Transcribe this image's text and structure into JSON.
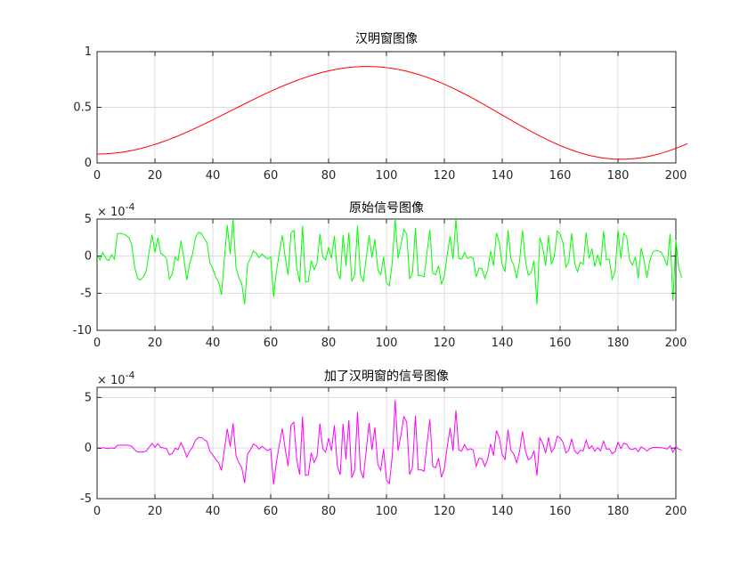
{
  "chart_data": [
    {
      "type": "line",
      "title": "汉明窗图像",
      "xlabel": "",
      "ylabel": "",
      "xlim": [
        0,
        200
      ],
      "ylim": [
        0,
        1
      ],
      "xticks": [
        "0",
        "20",
        "40",
        "60",
        "80",
        "100",
        "120",
        "140",
        "160",
        "180",
        "200"
      ],
      "yticks": [
        "0",
        "0.5",
        "1"
      ],
      "exponent": "",
      "grid": true,
      "color": "#ff0000",
      "series": [
        {
          "values": [
            0.08,
            0.0802,
            0.0809,
            0.082,
            0.0836,
            0.0856,
            0.0881,
            0.091,
            0.0943,
            0.0981,
            0.1023,
            0.1069,
            0.112,
            0.1174,
            0.1233,
            0.1296,
            0.1362,
            0.1433,
            0.1507,
            0.1585,
            0.1667,
            0.1752,
            0.184,
            0.1932,
            0.2027,
            0.2125,
            0.2226,
            0.233,
            0.2436,
            0.2545,
            0.2657,
            0.277,
            0.2886,
            0.3004,
            0.3124,
            0.3245,
            0.3368,
            0.3493,
            0.3619,
            0.3746,
            0.3874,
            0.4003,
            0.4133,
            0.4263,
            0.4394,
            0.4525,
            0.4656,
            0.4787,
            0.4919,
            0.505,
            0.518,
            0.531,
            0.544,
            0.5568,
            0.5696,
            0.5823,
            0.5948,
            0.6072,
            0.6195,
            0.6316,
            0.6435,
            0.6553,
            0.6668,
            0.6781,
            0.6893,
            0.7001,
            0.7108,
            0.7211,
            0.7312,
            0.741,
            0.7505,
            0.7597,
            0.7686,
            0.7772,
            0.7854,
            0.7933,
            0.8008,
            0.808,
            0.8148,
            0.8212,
            0.8272,
            0.8328,
            0.838,
            0.8428,
            0.8472,
            0.8511,
            0.8546,
            0.8577,
            0.8604,
            0.8626,
            0.8643,
            0.8656,
            0.8664,
            0.8668,
            0.8667,
            0.8662,
            0.8652,
            0.8637,
            0.8618,
            0.8594,
            0.8565,
            0.8532,
            0.8494,
            0.8452,
            0.8405,
            0.8353,
            0.8297,
            0.8237,
            0.8172,
            0.8103,
            0.8029,
            0.7952,
            0.787,
            0.7784,
            0.7694,
            0.76,
            0.7502,
            0.74,
            0.7294,
            0.7185,
            0.7072,
            0.6956,
            0.6837,
            0.6714,
            0.6589,
            0.6461,
            0.633,
            0.6196,
            0.606,
            0.5922,
            0.5782,
            0.564,
            0.5496,
            0.5351,
            0.5204,
            0.5056,
            0.4907,
            0.4758,
            0.4608,
            0.4457,
            0.4306,
            0.4156,
            0.4005,
            0.3855,
            0.3706,
            0.3557,
            0.341,
            0.3263,
            0.3118,
            0.2975,
            0.2834,
            0.2694,
            0.2557,
            0.2423,
            0.2291,
            0.2162,
            0.2036,
            0.1913,
            0.1794,
            0.1679,
            0.1567,
            0.1459,
            0.1356,
            0.1256,
            0.1161,
            0.1071,
            0.0985,
            0.0904,
            0.0828,
            0.0757,
            0.0691,
            0.0631,
            0.0576,
            0.0527,
            0.0483,
            0.0444,
            0.0412,
            0.0385,
            0.0364,
            0.0348,
            0.0339,
            0.0335,
            0.0337,
            0.0345,
            0.0358,
            0.0378,
            0.0403,
            0.0434,
            0.047,
            0.0512,
            0.056,
            0.0613,
            0.0671,
            0.0734,
            0.0803,
            0.0876,
            0.0954,
            0.1037,
            0.1125,
            0.1217,
            0.1313,
            0.1413,
            0.1518,
            0.1626,
            0.1738
          ]
        }
      ]
    },
    {
      "type": "line",
      "title": "原始信号图像",
      "xlabel": "",
      "ylabel": "",
      "xlim": [
        0,
        200
      ],
      "ylim": [
        -10,
        5
      ],
      "xticks": [
        "0",
        "20",
        "40",
        "60",
        "80",
        "100",
        "120",
        "140",
        "160",
        "180",
        "200"
      ],
      "yticks": [
        "-10",
        "-5",
        "0",
        "5"
      ],
      "exponent": "-4",
      "grid": true,
      "color": "#00ff00",
      "series": [
        {
          "values": [
            0.3,
            -0.5,
            0.5,
            -0.3,
            -0.6,
            0.2,
            -0.4,
            3.0,
            3.1,
            3.0,
            2.8,
            2.5,
            1.5,
            -1.5,
            -3.0,
            -3.2,
            -2.8,
            -2.0,
            0.6,
            2.9,
            0.5,
            2.5,
            0.4,
            0.1,
            -0.3,
            -3.1,
            -2.4,
            -0.1,
            -0.6,
            2.1,
            -0.3,
            -3.2,
            -1.0,
            0.3,
            2.5,
            3.2,
            3.1,
            2.4,
            1.8,
            -0.9,
            -1.7,
            -2.8,
            -3.5,
            -5.2,
            -0.3,
            4.2,
            0.3,
            5.1,
            -1.5,
            -2.9,
            -3.7,
            -6.5,
            -1.1,
            -0.3,
            0.7,
            0.4,
            -0.2,
            0.3,
            -0.1,
            -0.4,
            -0.1,
            -5.5,
            -2.0,
            0.5,
            2.8,
            -0.1,
            -2.5,
            3.1,
            3.5,
            -1.5,
            -3.5,
            4.1,
            -3.5,
            -3.4,
            -0.6,
            -1.8,
            -1.0,
            3.0,
            -0.1,
            -0.5,
            1.2,
            -0.3,
            2.7,
            -2.0,
            -3.1,
            2.8,
            -1.3,
            3.2,
            -3.4,
            -2.5,
            4.1,
            -2.5,
            -3.4,
            -0.3,
            2.8,
            -0.2,
            2.3,
            -1.8,
            -2.5,
            -0.1,
            -3.6,
            -4.0,
            -0.9,
            5.4,
            -0.3,
            1.5,
            3.6,
            3.0,
            -3.1,
            -2.2,
            3.8,
            -2.6,
            -2.6,
            -2.8,
            0.5,
            3.6,
            -2.3,
            -2.5,
            -1.3,
            -3.8,
            -2.7,
            0.2,
            2.7,
            -0.4,
            5.2,
            -0.3,
            -0.4,
            0.5,
            -0.3,
            -0.1,
            -0.3,
            -2.8,
            -1.6,
            -1.7,
            -3.0,
            -1.8,
            0.7,
            -1.3,
            3.1,
            1.8,
            -1.2,
            -2.1,
            3.5,
            -0.4,
            -1.2,
            -3.0,
            -0.6,
            3.5,
            -0.6,
            -2.6,
            -2.2,
            -0.6,
            -6.5,
            2.5,
            1.2,
            -1.3,
            2.8,
            -1.1,
            0.0,
            3.4,
            3.0,
            1.8,
            -1.5,
            -0.7,
            3.1,
            -0.9,
            -2.1,
            -0.8,
            -1.1,
            3.2,
            -0.3,
            1.0,
            -1.4,
            0.2,
            -1.3,
            3.4,
            -0.5,
            -0.4,
            -3.1,
            -2.1,
            3.5,
            -0.3,
            3.1,
            2.6,
            -0.5,
            -1.2,
            -0.1,
            -3.0,
            1.1,
            -0.5,
            -2.9,
            -0.6,
            0.5,
            0.8,
            0.7,
            0.5,
            -0.3,
            -1.3,
            3.0,
            -6.0,
            2.2,
            -1.6,
            -2.9
          ]
        }
      ]
    },
    {
      "type": "line",
      "title": "加了汉明窗的信号图像",
      "xlabel": "",
      "ylabel": "",
      "xlim": [
        0,
        200
      ],
      "ylim": [
        -5,
        6
      ],
      "xticks": [
        "0",
        "20",
        "40",
        "60",
        "80",
        "100",
        "120",
        "140",
        "160",
        "180",
        "200"
      ],
      "yticks": [
        "-5",
        "0",
        "5"
      ],
      "exponent": "-4",
      "grid": true,
      "color": "#ff00ff",
      "series": [
        {
          "values": [
            0.02,
            -0.04,
            0.04,
            -0.02,
            -0.05,
            0.02,
            -0.04,
            0.27,
            0.29,
            0.29,
            0.29,
            0.27,
            0.17,
            -0.18,
            -0.37,
            -0.41,
            -0.38,
            -0.29,
            0.09,
            0.46,
            0.08,
            0.44,
            0.07,
            0.02,
            -0.06,
            -0.66,
            -0.53,
            -0.02,
            -0.15,
            0.53,
            -0.08,
            -0.89,
            -0.29,
            0.09,
            0.78,
            1.04,
            1.04,
            0.84,
            0.65,
            -0.34,
            -0.66,
            -1.12,
            -1.45,
            -2.2,
            -0.13,
            1.9,
            0.14,
            2.44,
            -0.74,
            -1.46,
            -1.92,
            -3.45,
            -0.6,
            -0.17,
            0.4,
            0.23,
            -0.12,
            0.18,
            -0.06,
            -0.25,
            -0.06,
            -3.6,
            -1.33,
            0.34,
            1.93,
            -0.07,
            -1.78,
            2.24,
            2.56,
            -1.11,
            -2.63,
            3.11,
            -2.69,
            -2.64,
            -0.47,
            -1.43,
            -0.8,
            2.42,
            -0.08,
            -0.41,
            0.99,
            -0.25,
            2.26,
            -1.69,
            -2.64,
            2.39,
            -1.11,
            2.76,
            -2.94,
            -2.17,
            3.57,
            -2.18,
            -2.98,
            -0.26,
            2.48,
            -0.18,
            2.04,
            -1.6,
            -2.2,
            -0.09,
            -3.17,
            -3.51,
            -0.79,
            4.73,
            -0.26,
            1.3,
            3.1,
            2.56,
            -2.63,
            -1.85,
            3.18,
            -2.16,
            -2.14,
            -2.29,
            0.4,
            2.85,
            -1.81,
            -1.94,
            -1.0,
            -2.89,
            -2.03,
            0.15,
            1.97,
            -0.29,
            3.73,
            -0.21,
            -0.28,
            0.34,
            -0.2,
            -0.07,
            -0.2,
            -1.8,
            -1.0,
            -1.05,
            -1.81,
            -1.07,
            0.41,
            -0.74,
            1.74,
            1.0,
            -0.65,
            -1.11,
            1.81,
            -0.2,
            -0.6,
            -1.46,
            -0.29,
            1.64,
            -0.27,
            -1.17,
            -0.96,
            -0.26,
            -2.72,
            1.02,
            0.48,
            -0.5,
            1.05,
            -0.4,
            0.0,
            1.17,
            1.0,
            0.58,
            -0.47,
            -0.21,
            0.92,
            -0.26,
            -0.58,
            -0.21,
            -0.28,
            0.79,
            -0.07,
            0.23,
            -0.31,
            0.04,
            -0.27,
            0.68,
            -0.1,
            -0.08,
            -0.56,
            -0.36,
            0.58,
            -0.05,
            0.48,
            0.38,
            -0.07,
            -0.16,
            -0.01,
            -0.36,
            0.12,
            -0.05,
            -0.29,
            -0.06,
            0.05,
            0.07,
            0.06,
            0.04,
            -0.02,
            -0.1,
            0.22,
            -0.42,
            0.15,
            -0.11,
            -0.19
          ]
        }
      ]
    }
  ]
}
